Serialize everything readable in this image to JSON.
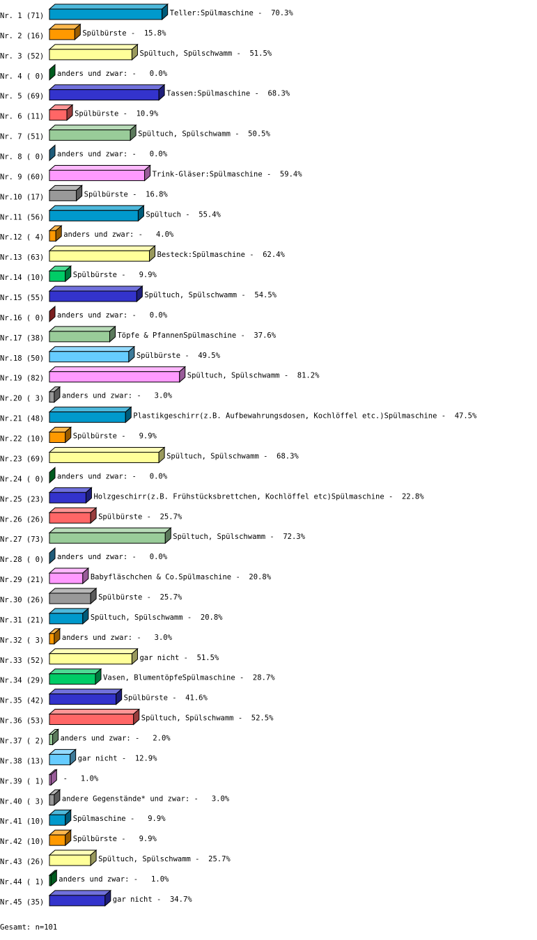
{
  "chart_data": {
    "type": "bar",
    "orientation": "horizontal",
    "style": "3d",
    "xlim": [
      0,
      100
    ],
    "grid": false,
    "colors": [
      "#0099cc",
      "#ff9900",
      "#ffff99",
      "#00cc66",
      "#3333cc",
      "#ff6666",
      "#99cc99",
      "#66ccff",
      "#ff99ff",
      "#999999"
    ],
    "zero_colors": {
      "4": "#009933",
      "8": "#3399cc",
      "16": "#cc3333",
      "24": "#009933",
      "28": "#3399cc",
      "44": "#009933"
    },
    "rows": [
      {
        "nr": "Nr. 1",
        "count": 71,
        "label": "Teller:Spülmaschine",
        "percent": 70.3
      },
      {
        "nr": "Nr. 2",
        "count": 16,
        "label": "Spülbürste",
        "percent": 15.8
      },
      {
        "nr": "Nr. 3",
        "count": 52,
        "label": "Spültuch, Spülschwamm",
        "percent": 51.5
      },
      {
        "nr": "Nr. 4",
        "count": 0,
        "label": "anders und zwar:",
        "percent": 0.0
      },
      {
        "nr": "Nr. 5",
        "count": 69,
        "label": "Tassen:Spülmaschine",
        "percent": 68.3
      },
      {
        "nr": "Nr. 6",
        "count": 11,
        "label": "Spülbürste",
        "percent": 10.9
      },
      {
        "nr": "Nr. 7",
        "count": 51,
        "label": "Spültuch, Spülschwamm",
        "percent": 50.5
      },
      {
        "nr": "Nr. 8",
        "count": 0,
        "label": "anders und zwar:",
        "percent": 0.0
      },
      {
        "nr": "Nr. 9",
        "count": 60,
        "label": "Trink-Gläser:Spülmaschine",
        "percent": 59.4
      },
      {
        "nr": "Nr.10",
        "count": 17,
        "label": "Spülbürste",
        "percent": 16.8
      },
      {
        "nr": "Nr.11",
        "count": 56,
        "label": "Spültuch",
        "percent": 55.4
      },
      {
        "nr": "Nr.12",
        "count": 4,
        "label": "anders und zwar:",
        "percent": 4.0
      },
      {
        "nr": "Nr.13",
        "count": 63,
        "label": "Besteck:Spülmaschine",
        "percent": 62.4
      },
      {
        "nr": "Nr.14",
        "count": 10,
        "label": "Spülbürste",
        "percent": 9.9
      },
      {
        "nr": "Nr.15",
        "count": 55,
        "label": "Spültuch, Spülschwamm",
        "percent": 54.5
      },
      {
        "nr": "Nr.16",
        "count": 0,
        "label": "anders und zwar:",
        "percent": 0.0
      },
      {
        "nr": "Nr.17",
        "count": 38,
        "label": "Töpfe & PfannenSpülmaschine",
        "percent": 37.6
      },
      {
        "nr": "Nr.18",
        "count": 50,
        "label": "Spülbürste",
        "percent": 49.5
      },
      {
        "nr": "Nr.19",
        "count": 82,
        "label": "Spültuch, Spülschwamm",
        "percent": 81.2
      },
      {
        "nr": "Nr.20",
        "count": 3,
        "label": "anders und zwar:",
        "percent": 3.0
      },
      {
        "nr": "Nr.21",
        "count": 48,
        "label": "Plastikgeschirr(z.B. Aufbewahrungsdosen, Kochlöffel etc.)Spülmaschine",
        "percent": 47.5
      },
      {
        "nr": "Nr.22",
        "count": 10,
        "label": "Spülbürste",
        "percent": 9.9
      },
      {
        "nr": "Nr.23",
        "count": 69,
        "label": "Spültuch, Spülschwamm",
        "percent": 68.3
      },
      {
        "nr": "Nr.24",
        "count": 0,
        "label": "anders und zwar:",
        "percent": 0.0
      },
      {
        "nr": "Nr.25",
        "count": 23,
        "label": "Holzgeschirr(z.B. Frühstücksbrettchen, Kochlöffel etc)Spülmaschine",
        "percent": 22.8
      },
      {
        "nr": "Nr.26",
        "count": 26,
        "label": "Spülbürste",
        "percent": 25.7
      },
      {
        "nr": "Nr.27",
        "count": 73,
        "label": "Spültuch, Spülschwamm",
        "percent": 72.3
      },
      {
        "nr": "Nr.28",
        "count": 0,
        "label": "anders und zwar:",
        "percent": 0.0
      },
      {
        "nr": "Nr.29",
        "count": 21,
        "label": "Babyfläschchen & Co.Spülmaschine",
        "percent": 20.8
      },
      {
        "nr": "Nr.30",
        "count": 26,
        "label": "Spülbürste",
        "percent": 25.7
      },
      {
        "nr": "Nr.31",
        "count": 21,
        "label": "Spültuch, Spülschwamm",
        "percent": 20.8
      },
      {
        "nr": "Nr.32",
        "count": 3,
        "label": "anders und zwar:",
        "percent": 3.0
      },
      {
        "nr": "Nr.33",
        "count": 52,
        "label": "gar nicht",
        "percent": 51.5
      },
      {
        "nr": "Nr.34",
        "count": 29,
        "label": "Vasen, BlumentöpfeSpülmaschine",
        "percent": 28.7
      },
      {
        "nr": "Nr.35",
        "count": 42,
        "label": "Spülbürste",
        "percent": 41.6
      },
      {
        "nr": "Nr.36",
        "count": 53,
        "label": "Spültuch, Spülschwamm",
        "percent": 52.5
      },
      {
        "nr": "Nr.37",
        "count": 2,
        "label": "anders und zwar:",
        "percent": 2.0
      },
      {
        "nr": "Nr.38",
        "count": 13,
        "label": "gar nicht",
        "percent": 12.9
      },
      {
        "nr": "Nr.39",
        "count": 1,
        "label": "",
        "percent": 1.0
      },
      {
        "nr": "Nr.40",
        "count": 3,
        "label": "andere Gegenstände* und zwar:",
        "percent": 3.0
      },
      {
        "nr": "Nr.41",
        "count": 10,
        "label": "Spülmaschine",
        "percent": 9.9
      },
      {
        "nr": "Nr.42",
        "count": 10,
        "label": "Spülbürste",
        "percent": 9.9
      },
      {
        "nr": "Nr.43",
        "count": 26,
        "label": "Spültuch, Spülschwamm",
        "percent": 25.7
      },
      {
        "nr": "Nr.44",
        "count": 1,
        "label": "anders und zwar:",
        "percent": 1.0
      },
      {
        "nr": "Nr.45",
        "count": 35,
        "label": "gar nicht",
        "percent": 34.7
      }
    ]
  },
  "footer": {
    "total": "Gesamt: n=101"
  }
}
